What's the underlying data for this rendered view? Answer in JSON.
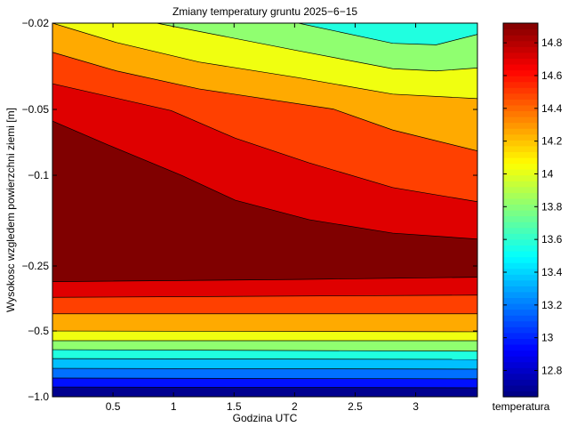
{
  "chart_data": {
    "type": "contourf",
    "title": "Zmiany temperatury gruntu 2025−6−15",
    "xlabel": "Godzina UTC",
    "ylabel": "Wysokosc wzgledem powierzchni ziemi [m]",
    "xlim": [
      0,
      3.51
    ],
    "x_ticks": [
      0.5,
      1,
      1.5,
      2,
      2.5,
      3
    ],
    "x_tick_labels": [
      "0.5",
      "1",
      "1.5",
      "2",
      "2.5",
      "3"
    ],
    "y_axis_note": "depth levels on index scale 0 (top) to 5 (bottom)",
    "ylim_index": [
      0,
      5
    ],
    "y_ticks_index": [
      0,
      1.155,
      2.036,
      3.25,
      4.12,
      5
    ],
    "y_tick_labels": [
      "−0.02",
      "−0.05",
      "−0.1",
      "−0.25",
      "−0.5",
      "−1.0"
    ],
    "base_color": "#00008F",
    "contour_boundaries": [
      {
        "level": 12.8,
        "color_above": "#0010FF",
        "points": [
          [
            0,
            4.87
          ],
          [
            3.51,
            4.88
          ]
        ]
      },
      {
        "level": 13.0,
        "color_above": "#0070FF",
        "points": [
          [
            0,
            4.75
          ],
          [
            3.51,
            4.76
          ]
        ]
      },
      {
        "level": 13.2,
        "color_above": "#00C0FF",
        "points": [
          [
            0,
            4.62
          ],
          [
            3.51,
            4.63
          ]
        ]
      },
      {
        "level": 13.4,
        "color_above": "#20FFE0",
        "points": [
          [
            0,
            4.49
          ],
          [
            3.51,
            4.5
          ]
        ]
      },
      {
        "level": 13.6,
        "color_above": "#90FF70",
        "points": [
          [
            0,
            4.37
          ],
          [
            3.51,
            4.39
          ]
        ]
      },
      {
        "level": 13.8,
        "color_above": "#F0FF10",
        "points": [
          [
            0,
            4.25
          ],
          [
            3.51,
            4.25
          ]
        ]
      },
      {
        "level": 14.0,
        "color_above": "#FFAA00",
        "points": [
          [
            0,
            4.12
          ],
          [
            3.51,
            4.13
          ]
        ]
      },
      {
        "level": 14.2,
        "color_above": "#FF4000",
        "points": [
          [
            0,
            3.89
          ],
          [
            3.51,
            3.89
          ]
        ]
      },
      {
        "level": 14.4,
        "color_above": "#DF0000",
        "points": [
          [
            0,
            3.67
          ],
          [
            3.51,
            3.64
          ]
        ]
      },
      {
        "level": 14.6,
        "color_above": "#800000",
        "points": [
          [
            0,
            3.46
          ],
          [
            2.03,
            3.43
          ],
          [
            3.51,
            3.4
          ]
        ]
      },
      {
        "level": 14.6,
        "color_above": "#DF0000",
        "points": [
          [
            0,
            1.31
          ],
          [
            0.46,
            1.63
          ],
          [
            1.07,
            2.04
          ],
          [
            1.51,
            2.37
          ],
          [
            2.12,
            2.63
          ],
          [
            2.81,
            2.81
          ],
          [
            3.51,
            2.89
          ]
        ]
      },
      {
        "level": 14.4,
        "color_above": "#FF4000",
        "points": [
          [
            0,
            0.81
          ],
          [
            0.98,
            1.17
          ],
          [
            1.51,
            1.54
          ],
          [
            2.12,
            1.87
          ],
          [
            2.81,
            2.2
          ],
          [
            3.51,
            2.39
          ]
        ]
      },
      {
        "level": 14.2,
        "color_above": "#FFAA00",
        "points": [
          [
            0,
            0.39
          ],
          [
            0.53,
            0.64
          ],
          [
            1.21,
            0.88
          ],
          [
            2.32,
            1.15
          ],
          [
            2.81,
            1.43
          ],
          [
            3.51,
            1.71
          ]
        ]
      },
      {
        "level": 14.0,
        "color_above": "#F0FF10",
        "points": [
          [
            0,
            0
          ],
          [
            0.53,
            0.26
          ],
          [
            1.21,
            0.52
          ],
          [
            2.03,
            0.73
          ],
          [
            2.81,
            0.95
          ],
          [
            3.51,
            1.01
          ]
        ]
      },
      {
        "level": 13.8,
        "color_above": "#90FF70",
        "points": [
          [
            0.86,
            0
          ],
          [
            2.03,
            0.37
          ],
          [
            2.81,
            0.61
          ],
          [
            3.17,
            0.64
          ],
          [
            3.51,
            0.6
          ]
        ]
      },
      {
        "level": 13.6,
        "color_above": "#20FFE0",
        "points": [
          [
            2.03,
            0
          ],
          [
            2.81,
            0.27
          ],
          [
            3.17,
            0.29
          ],
          [
            3.51,
            0.15
          ]
        ]
      }
    ],
    "colorbar": {
      "label": "temperatura",
      "range": [
        12.64,
        14.92
      ],
      "ticks": [
        12.8,
        13,
        13.2,
        13.4,
        13.6,
        13.8,
        14,
        14.2,
        14.4,
        14.6,
        14.8
      ],
      "tick_labels": [
        "12.8",
        "13",
        "13.2",
        "13.4",
        "13.6",
        "13.8",
        "14",
        "14.2",
        "14.4",
        "14.6",
        "14.8"
      ],
      "colormap": "jet"
    }
  }
}
